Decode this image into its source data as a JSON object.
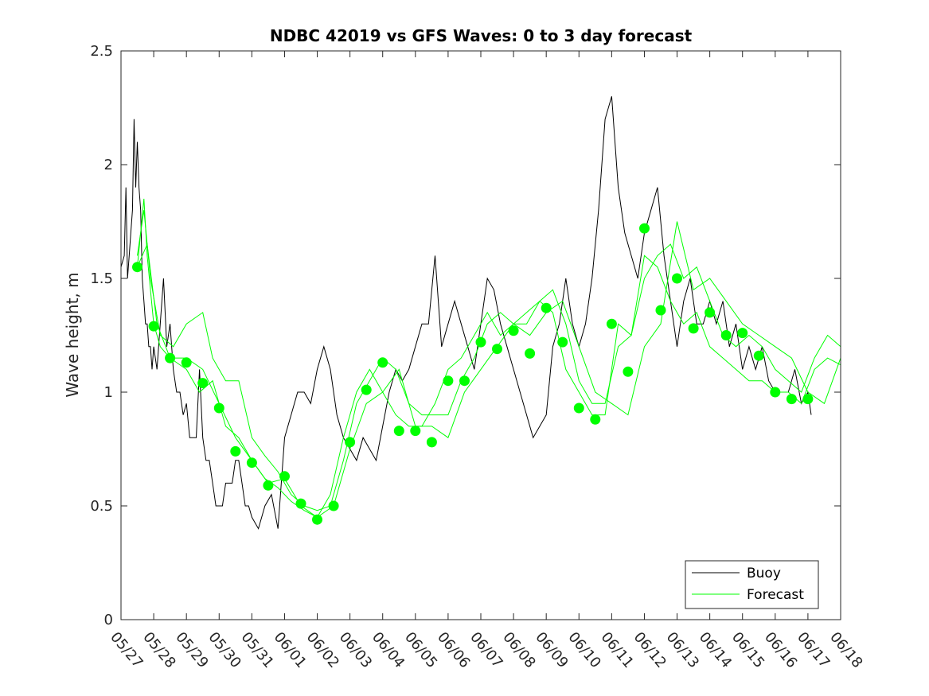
{
  "chart_data": {
    "type": "line",
    "title": "NDBC 42019 vs GFS Waves: 0 to 3 day forecast",
    "xlabel": "",
    "ylabel": "Wave height, m",
    "xlim": [
      0,
      22
    ],
    "ylim": [
      0,
      2.5
    ],
    "x_tick_labels": [
      "05/27",
      "05/28",
      "05/29",
      "05/30",
      "05/31",
      "06/01",
      "06/02",
      "06/03",
      "06/04",
      "06/05",
      "06/06",
      "06/07",
      "06/08",
      "06/09",
      "06/10",
      "06/11",
      "06/12",
      "06/13",
      "06/14",
      "06/15",
      "06/16",
      "06/17",
      "06/18"
    ],
    "y_ticks": [
      0,
      0.5,
      1,
      1.5,
      2,
      2.5
    ],
    "y_tick_labels": [
      "0",
      "0.5",
      "1",
      "1.5",
      "2",
      "2.5"
    ],
    "grid": false,
    "legend_position": "bottom-right",
    "colors": {
      "buoy": "#000000",
      "forecast": "#00ff00"
    },
    "series": [
      {
        "name": "Buoy",
        "style": "line",
        "x": [
          0,
          0.1,
          0.15,
          0.2,
          0.25,
          0.3,
          0.35,
          0.4,
          0.45,
          0.5,
          0.55,
          0.6,
          0.65,
          0.7,
          0.75,
          0.8,
          0.85,
          0.9,
          0.95,
          1.0,
          1.1,
          1.2,
          1.3,
          1.4,
          1.5,
          1.6,
          1.7,
          1.8,
          1.9,
          2.0,
          2.1,
          2.2,
          2.3,
          2.4,
          2.5,
          2.6,
          2.7,
          2.8,
          2.9,
          3.0,
          3.1,
          3.2,
          3.3,
          3.4,
          3.5,
          3.6,
          3.7,
          3.8,
          3.9,
          4.0,
          4.2,
          4.4,
          4.6,
          4.8,
          5.0,
          5.2,
          5.4,
          5.6,
          5.8,
          6.0,
          6.2,
          6.4,
          6.6,
          6.8,
          7.0,
          7.2,
          7.4,
          7.6,
          7.8,
          8.0,
          8.2,
          8.4,
          8.6,
          8.8,
          9.0,
          9.2,
          9.4,
          9.6,
          9.8,
          10.0,
          10.2,
          10.4,
          10.6,
          10.8,
          11.0,
          11.2,
          11.4,
          11.6,
          11.8,
          12.0,
          12.2,
          12.4,
          12.6,
          12.8,
          13.0,
          13.2,
          13.4,
          13.6,
          13.8,
          14.0,
          14.2,
          14.4,
          14.6,
          14.8,
          15.0,
          15.2,
          15.4,
          15.6,
          15.8,
          16.0,
          16.2,
          16.4,
          16.6,
          16.8,
          17.0,
          17.2,
          17.4,
          17.6,
          17.8,
          18.0,
          18.2,
          18.4,
          18.6,
          18.8,
          19.0,
          19.2,
          19.4,
          19.6,
          19.8,
          20.0,
          20.2,
          20.4,
          20.6,
          20.8,
          21.0,
          21.1
        ],
        "y": [
          1.55,
          1.6,
          1.9,
          1.5,
          1.6,
          1.7,
          1.8,
          2.2,
          1.9,
          2.1,
          1.9,
          1.8,
          1.5,
          1.4,
          1.3,
          1.3,
          1.2,
          1.2,
          1.1,
          1.2,
          1.1,
          1.3,
          1.5,
          1.2,
          1.3,
          1.1,
          1.0,
          1.0,
          0.9,
          0.95,
          0.8,
          0.8,
          0.8,
          1.1,
          0.8,
          0.7,
          0.7,
          0.6,
          0.5,
          0.5,
          0.5,
          0.6,
          0.6,
          0.6,
          0.7,
          0.7,
          0.6,
          0.5,
          0.5,
          0.45,
          0.4,
          0.5,
          0.55,
          0.4,
          0.8,
          0.9,
          1.0,
          1.0,
          0.95,
          1.1,
          1.2,
          1.1,
          0.9,
          0.8,
          0.75,
          0.7,
          0.8,
          0.75,
          0.7,
          0.85,
          1.0,
          1.1,
          1.05,
          1.1,
          1.2,
          1.3,
          1.3,
          1.6,
          1.2,
          1.3,
          1.4,
          1.3,
          1.2,
          1.1,
          1.3,
          1.5,
          1.45,
          1.3,
          1.2,
          1.1,
          1.0,
          0.9,
          0.8,
          0.85,
          0.9,
          1.2,
          1.3,
          1.5,
          1.3,
          1.2,
          1.3,
          1.5,
          1.8,
          2.2,
          2.3,
          1.9,
          1.7,
          1.6,
          1.5,
          1.7,
          1.8,
          1.9,
          1.6,
          1.4,
          1.2,
          1.4,
          1.5,
          1.3,
          1.3,
          1.4,
          1.3,
          1.4,
          1.2,
          1.3,
          1.1,
          1.2,
          1.1,
          1.2,
          1.05,
          1.0,
          1.0,
          1.0,
          1.1,
          0.95,
          1.0,
          0.9
        ]
      },
      {
        "name": "Forecast",
        "style": "line",
        "x": [
          0.5,
          0.6,
          0.7,
          0.8,
          1.0,
          1.2,
          1.5,
          2.0,
          2.5,
          3.0,
          3.5,
          4.0,
          4.5,
          5.0,
          5.5,
          6.0,
          6.5,
          7.0,
          7.5,
          8.0,
          8.5,
          9.0,
          9.5,
          10.0,
          10.5,
          11.0,
          11.5,
          12.0,
          12.5,
          13.0,
          13.5,
          14.0,
          14.5,
          15.0,
          15.5,
          16.0,
          16.5,
          17.0,
          17.5,
          18.0,
          18.5,
          19.0,
          19.5,
          20.0,
          20.5,
          21.0,
          21.5,
          22.0
        ],
        "y": [
          1.55,
          1.7,
          1.85,
          1.6,
          1.3,
          1.2,
          1.15,
          1.15,
          1.1,
          0.95,
          0.8,
          0.7,
          0.6,
          0.62,
          0.5,
          0.45,
          0.5,
          0.75,
          0.95,
          1.0,
          1.1,
          0.85,
          0.85,
          0.8,
          1.0,
          1.1,
          1.2,
          1.3,
          1.25,
          1.35,
          1.4,
          1.2,
          1.0,
          0.95,
          0.9,
          1.2,
          1.3,
          1.75,
          1.45,
          1.5,
          1.4,
          1.3,
          1.25,
          1.2,
          1.15,
          1.0,
          0.95,
          1.15
        ]
      },
      {
        "name": "Forecast",
        "style": "line",
        "x": [
          0.5,
          0.7,
          0.9,
          1.2,
          1.6,
          2.0,
          2.5,
          2.8,
          3.2,
          3.6,
          4.0,
          4.4,
          4.8,
          5.2,
          5.6,
          6.0,
          6.4,
          6.8,
          7.2,
          7.6,
          8.0,
          8.4,
          8.8,
          9.2,
          9.6,
          10.0,
          10.4,
          10.8,
          11.2,
          11.6,
          12.0,
          12.4,
          12.8,
          13.2,
          13.6,
          14.0,
          14.4,
          14.8,
          15.2,
          15.6,
          16.0,
          16.4,
          16.8,
          17.2,
          17.6,
          18.0,
          18.4,
          18.8,
          19.2,
          19.6,
          20.0,
          20.4,
          20.8,
          21.2,
          21.6,
          22.0
        ],
        "y": [
          1.6,
          1.8,
          1.5,
          1.25,
          1.2,
          1.3,
          1.35,
          1.15,
          1.05,
          1.05,
          0.8,
          0.72,
          0.65,
          0.55,
          0.5,
          0.48,
          0.5,
          0.7,
          0.95,
          1.05,
          1.15,
          1.1,
          0.95,
          0.9,
          0.9,
          0.9,
          1.05,
          1.15,
          1.3,
          1.35,
          1.3,
          1.3,
          1.4,
          1.45,
          1.3,
          1.05,
          0.95,
          0.95,
          1.2,
          1.25,
          1.5,
          1.6,
          1.65,
          1.5,
          1.55,
          1.4,
          1.25,
          1.2,
          1.25,
          1.2,
          1.1,
          1.05,
          1.0,
          1.15,
          1.25,
          1.2
        ]
      },
      {
        "name": "Forecast",
        "style": "line",
        "x": [
          0.5,
          0.8,
          1.1,
          1.5,
          2.0,
          2.4,
          2.8,
          3.2,
          3.6,
          4.0,
          4.4,
          4.8,
          5.2,
          5.6,
          6.0,
          6.4,
          6.8,
          7.2,
          7.6,
          8.0,
          8.4,
          8.8,
          9.2,
          9.6,
          10.0,
          10.4,
          10.8,
          11.2,
          11.6,
          12.0,
          12.4,
          12.8,
          13.2,
          13.6,
          14.0,
          14.4,
          14.8,
          15.2,
          15.6,
          16.0,
          16.4,
          16.8,
          17.2,
          17.6,
          18.0,
          18.4,
          18.8,
          19.2,
          19.6,
          20.0,
          20.4,
          20.8,
          21.2,
          21.6,
          22.0
        ],
        "y": [
          1.55,
          1.65,
          1.3,
          1.15,
          1.1,
          1.0,
          1.05,
          0.85,
          0.8,
          0.7,
          0.62,
          0.58,
          0.52,
          0.48,
          0.45,
          0.55,
          0.8,
          1.0,
          1.1,
          1.0,
          0.9,
          0.85,
          0.85,
          0.95,
          1.1,
          1.15,
          1.25,
          1.35,
          1.25,
          1.3,
          1.35,
          1.4,
          1.35,
          1.1,
          1.0,
          0.9,
          0.9,
          1.3,
          1.25,
          1.6,
          1.55,
          1.4,
          1.3,
          1.35,
          1.2,
          1.15,
          1.1,
          1.05,
          1.05,
          1.0,
          1.0,
          0.95,
          1.1,
          1.15,
          1.12
        ]
      },
      {
        "name": "Forecast",
        "style": "markers",
        "x": [
          0.5,
          1.0,
          1.5,
          2.0,
          2.5,
          3.0,
          3.5,
          4.0,
          4.5,
          5.0,
          5.5,
          6.0,
          6.5,
          7.0,
          7.5,
          8.0,
          8.5,
          9.0,
          9.5,
          10.0,
          10.5,
          11.0,
          11.5,
          12.0,
          12.5,
          13.0,
          13.5,
          14.0,
          14.5,
          15.0,
          15.5,
          16.0,
          16.5,
          17.0,
          17.5,
          18.0,
          18.5,
          19.0,
          19.5,
          20.0,
          20.5,
          21.0
        ],
        "y": [
          1.55,
          1.29,
          1.15,
          1.13,
          1.04,
          0.93,
          0.74,
          0.69,
          0.59,
          0.63,
          0.51,
          0.44,
          0.5,
          0.78,
          1.01,
          1.13,
          0.83,
          0.83,
          0.78,
          1.05,
          1.05,
          1.22,
          1.19,
          1.27,
          1.17,
          1.37,
          1.22,
          0.93,
          0.88,
          1.3,
          1.09,
          1.72,
          1.36,
          1.5,
          1.28,
          1.35,
          1.25,
          1.26,
          1.16,
          1.0,
          0.97,
          0.97
        ]
      }
    ]
  }
}
